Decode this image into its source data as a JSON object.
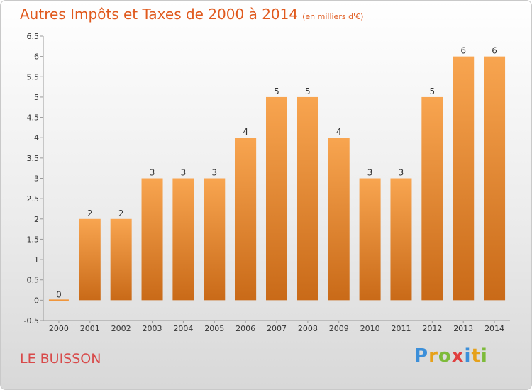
{
  "chart_data": {
    "type": "bar",
    "title": "Autres Impôts et Taxes de 2000 à 2014",
    "subtitle": "(en milliers d'€)",
    "categories": [
      "2000",
      "2001",
      "2002",
      "2003",
      "2004",
      "2005",
      "2006",
      "2007",
      "2008",
      "2009",
      "2010",
      "2011",
      "2012",
      "2013",
      "2014"
    ],
    "values": [
      0,
      2,
      2,
      3,
      3,
      3,
      4,
      5,
      5,
      4,
      3,
      3,
      5,
      6,
      6
    ],
    "ylim": [
      -0.5,
      6.5
    ],
    "yticks": [
      "-0.5",
      "0",
      "0.5",
      "1",
      "1.5",
      "2",
      "2.5",
      "3",
      "3.5",
      "4",
      "4.5",
      "5",
      "5.5",
      "6",
      "6.5"
    ],
    "grid": false,
    "bar_color": "#f0963c"
  },
  "footer": {
    "place": "LE BUISSON",
    "logo": "Proxiti"
  }
}
